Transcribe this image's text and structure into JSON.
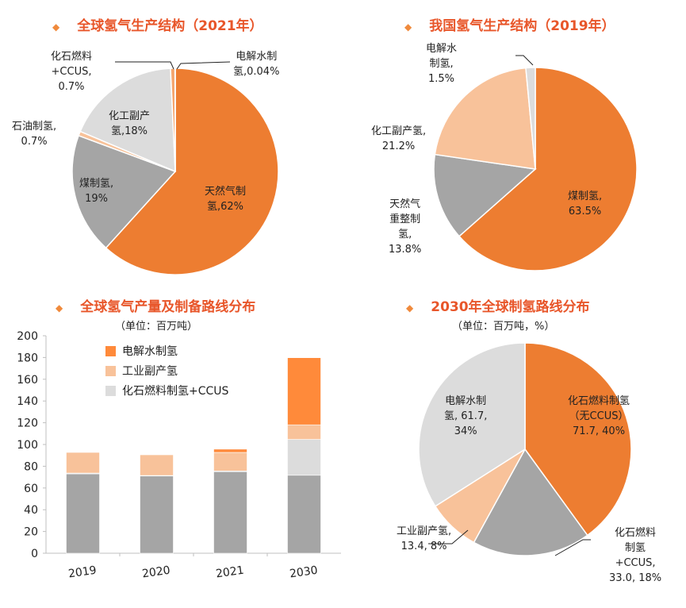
{
  "colors": {
    "orange": "#ED7D31",
    "gray": "#A5A5A5",
    "lightgray": "#DCDCDC",
    "lightorange": "#F8C29A",
    "bar_orange": "#FF8A3A",
    "title": "#E8562A"
  },
  "chart_data": [
    {
      "type": "pie",
      "title": "全球氢气生产结构（2021年）",
      "slices": [
        {
          "name": "天然气制氢",
          "value": 62,
          "label": "天然气制\n氢,62%",
          "color": "#ED7D31"
        },
        {
          "name": "煤制氢",
          "value": 19,
          "label": "煤制氢,\n19%",
          "color": "#A5A5A5"
        },
        {
          "name": "石油制氢",
          "value": 0.7,
          "label": "石油制氢,\n0.7%",
          "color": "#F8C29A"
        },
        {
          "name": "化工副产氢",
          "value": 18,
          "label": "化工副产\n氢,18%",
          "color": "#DCDCDC"
        },
        {
          "name": "化石燃料+CCUS",
          "value": 0.7,
          "label": "化石燃料\n+CCUS,\n0.7%",
          "color": "#F4A56E"
        },
        {
          "name": "电解水制氢",
          "value": 0.04,
          "label": "电解水制\n氢,0.04%",
          "color": "#ED7D31"
        }
      ]
    },
    {
      "type": "pie",
      "title": "我国氢气生产结构（2019年）",
      "slices": [
        {
          "name": "煤制氢",
          "value": 63.5,
          "label": "煤制氢,\n63.5%",
          "color": "#ED7D31"
        },
        {
          "name": "天然气重整制氢",
          "value": 13.8,
          "label": "天然气\n重整制\n氢,\n13.8%",
          "color": "#A5A5A5"
        },
        {
          "name": "化工副产氢",
          "value": 21.2,
          "label": "化工副产氢,\n21.2%",
          "color": "#F8C29A"
        },
        {
          "name": "电解水制氢",
          "value": 1.5,
          "label": "电解水\n制氢,\n1.5%",
          "color": "#DCDCDC"
        }
      ]
    },
    {
      "type": "bar",
      "stacked": true,
      "title": "全球氢气产量及制备路线分布",
      "unit": "（单位：百万吨）",
      "categories": [
        "2019",
        "2020",
        "2021",
        "2030"
      ],
      "ylim": [
        0,
        200
      ],
      "yticks": [
        0,
        20,
        40,
        60,
        80,
        100,
        120,
        140,
        160,
        180,
        200
      ],
      "legend_position": "top-left",
      "series": [
        {
          "name": "",
          "values": [
            73,
            71,
            75,
            71.7
          ],
          "color": "#A5A5A5"
        },
        {
          "name": "化石燃料制氢+CCUS",
          "values": [
            0.7,
            0.5,
            0.7,
            33.0
          ],
          "color": "#DCDCDC"
        },
        {
          "name": "工业副产氢",
          "values": [
            19,
            19,
            17,
            13.4
          ],
          "color": "#F8C29A"
        },
        {
          "name": "电解水制氢",
          "values": [
            0,
            0,
            3,
            61.7
          ],
          "color": "#FF8A3A"
        }
      ]
    },
    {
      "type": "pie",
      "title": "2030年全球制氢路线分布",
      "unit": "（单位：百万吨，%）",
      "slices": [
        {
          "name": "化石燃料制氢（无CCUS）",
          "value": 40,
          "label": "化石燃料制氢\n（无CCUS）\n71.7, 40%",
          "color": "#ED7D31"
        },
        {
          "name": "化石燃料制氢+CCUS",
          "value": 18,
          "label": "化石燃料\n制氢\n+CCUS,\n33.0, 18%",
          "color": "#A5A5A5"
        },
        {
          "name": "工业副产氢",
          "value": 8,
          "label": "工业副产氢,\n13.4, 8%",
          "color": "#F8C29A"
        },
        {
          "name": "电解水制氢",
          "value": 34,
          "label": "电解水制\n氢, 61.7,\n34%",
          "color": "#DCDCDC"
        }
      ]
    }
  ]
}
